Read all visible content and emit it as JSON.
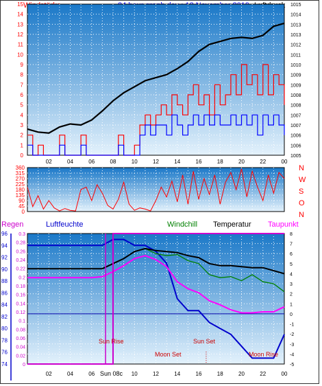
{
  "header": {
    "left_label": "Windstärke",
    "title": "24 hour graph day : 18 November 2019",
    "right_label": "Luftdruck"
  },
  "colors": {
    "wind": "#ff0000",
    "gust": "#0000ff",
    "pressure": "#000000",
    "rain": "#cc00cc",
    "humidity": "#0000cc",
    "windchill": "#008000",
    "temperature": "#000000",
    "dewpoint": "#ff00ff",
    "event": "#cc0000",
    "plot_top": "#1a78c8",
    "plot_bottom": "#e4f2fc"
  },
  "bottom_header": {
    "rain_label": "Regen",
    "humidity_label": "Luftfeuchte",
    "windchill_label": "Windchill",
    "temperature_label": "Temperatur",
    "dewpoint_label": "Taupunkt"
  },
  "events": {
    "sunrise": "Sun Rise",
    "sunset": "Sun Set",
    "moonset": "Moon Set",
    "moonrise": "Moon Rise",
    "sunrise_bottom": "Sun 08c"
  },
  "chart_data": [
    {
      "type": "line",
      "name": "wind-pressure",
      "x_ticks": [
        "02",
        "04",
        "06",
        "08",
        "10",
        "12",
        "14",
        "16",
        "18",
        "20",
        "22",
        "00"
      ],
      "x_range": [
        0,
        24
      ],
      "y_left_ticks": [
        "0",
        "1",
        "2",
        "3",
        "4",
        "5",
        "6",
        "7",
        "8",
        "9",
        "10",
        "11",
        "12",
        "13",
        "14",
        "15"
      ],
      "y_left_range": [
        0,
        15
      ],
      "y_right_ticks": [
        "1005",
        "1006",
        "1006",
        "1007",
        "1007",
        "1008",
        "1008",
        "1009",
        "1009",
        "1010",
        "1011",
        "1012",
        "1013",
        "1013",
        "1014",
        "1015"
      ],
      "pressure_x": [
        0,
        1,
        2,
        3,
        4,
        5,
        6,
        7,
        8,
        9,
        10,
        11,
        12,
        13,
        14,
        15,
        16,
        17,
        18,
        19,
        20,
        21,
        22,
        23,
        24
      ],
      "pressure_y": [
        2.6,
        2.3,
        2.2,
        2.8,
        3.1,
        3.0,
        3.5,
        4.4,
        5.4,
        6.2,
        6.8,
        7.4,
        7.7,
        8.0,
        8.6,
        9.3,
        10.3,
        11.0,
        11.3,
        11.6,
        11.7,
        11.6,
        11.9,
        12.8,
        13.1
      ],
      "wind_level_x": [
        0,
        0.5,
        1,
        1.5,
        2,
        2.5,
        3,
        3.5,
        4,
        4.5,
        5,
        5.5,
        6,
        6.5,
        7,
        7.5,
        8,
        8.5,
        9,
        9.5,
        10,
        10.5,
        11,
        11.5,
        12,
        12.5,
        13,
        13.5,
        14,
        14.5,
        15,
        15.5,
        16,
        16.5,
        17,
        17.5,
        18,
        18.5,
        19,
        19.5,
        20,
        20.5,
        21,
        21.5,
        22,
        22.5,
        23,
        23.5,
        24
      ],
      "wind_level_y": [
        2,
        0,
        1,
        0,
        0,
        0,
        2,
        0,
        0,
        0,
        2,
        0,
        0,
        0,
        0,
        0,
        0,
        2,
        0,
        0,
        1,
        3,
        4,
        3,
        4,
        5,
        4,
        6,
        5,
        4,
        6,
        7,
        5,
        6,
        4,
        7,
        5,
        6,
        8,
        6,
        9,
        7,
        8,
        6,
        9,
        6,
        8,
        7,
        5
      ],
      "gust_level_y": [
        1,
        0,
        0,
        0,
        0,
        0,
        1,
        0,
        0,
        0,
        1,
        0,
        0,
        0,
        0,
        0,
        0,
        1,
        0,
        0,
        0,
        2,
        3,
        2,
        3,
        3,
        2,
        4,
        3,
        2,
        3,
        4,
        3,
        4,
        3,
        4,
        3,
        3,
        4,
        3,
        4,
        3,
        4,
        2,
        4,
        3,
        4,
        3,
        2
      ]
    },
    {
      "type": "line",
      "name": "wind-direction",
      "x_range": [
        0,
        24
      ],
      "y_left_ticks": [
        "0",
        "45",
        "90",
        "135",
        "180",
        "225",
        "270",
        "315",
        "360"
      ],
      "y_left_range": [
        0,
        360
      ],
      "y_right_labels": [
        "N",
        "W",
        "S",
        "O",
        "N"
      ],
      "direction_x": [
        0,
        0.5,
        1,
        1.5,
        2,
        2.5,
        3,
        3.5,
        4,
        4.5,
        5,
        5.5,
        6,
        6.5,
        7,
        7.5,
        8,
        8.5,
        9,
        9.5,
        10,
        10.5,
        11,
        11.5,
        12,
        12.5,
        13,
        13.5,
        14,
        14.5,
        15,
        15.5,
        16,
        16.5,
        17,
        17.5,
        18,
        18.5,
        19,
        19.5,
        20,
        20.5,
        21,
        21.5,
        22,
        22.5,
        23,
        23.5,
        24
      ],
      "direction_y": [
        200,
        40,
        130,
        20,
        90,
        30,
        5,
        25,
        10,
        5,
        180,
        200,
        90,
        220,
        150,
        50,
        20,
        100,
        240,
        60,
        10,
        30,
        20,
        5,
        90,
        200,
        120,
        250,
        80,
        300,
        60,
        330,
        100,
        270,
        140,
        300,
        60,
        240,
        320,
        180,
        350,
        120,
        330,
        200,
        90,
        300,
        150,
        320,
        270
      ]
    },
    {
      "type": "line",
      "name": "temperature-humidity",
      "x_range": [
        0,
        24
      ],
      "y_left_humidity_ticks": [
        "74",
        "76",
        "78",
        "80",
        "82",
        "84",
        "86",
        "88",
        "90",
        "92",
        "94",
        "96"
      ],
      "y_left_humidity_range": [
        74,
        96
      ],
      "y_left_rain_ticks": [
        "0",
        "0.02",
        "0.04",
        "0.06",
        "0.08",
        "0.1",
        "0.12",
        "0.14",
        "0.16",
        "0.18",
        "0.2",
        "0.22",
        "0.24",
        "0.26",
        "0.28",
        "0.3"
      ],
      "y_left_rain_range": [
        0,
        0.3
      ],
      "y_right_ticks": [
        "-5",
        "-4",
        "-3",
        "-2",
        "-1",
        "0",
        "1",
        "2",
        "3",
        "4",
        "5",
        "6",
        "7",
        "8"
      ],
      "y_right_range": [
        -5,
        8
      ],
      "temp_x": [
        0,
        2,
        4,
        6,
        7,
        8,
        9,
        10,
        11,
        12,
        13,
        14,
        15,
        16,
        17,
        18,
        19,
        20,
        21,
        22,
        23,
        24
      ],
      "temperature": [
        4.5,
        4.5,
        4.5,
        4.5,
        4.5,
        5.0,
        5.5,
        6.2,
        6.5,
        6.3,
        6.2,
        6.1,
        5.8,
        5.6,
        5.0,
        4.8,
        4.8,
        4.7,
        4.6,
        4.6,
        4.3,
        4.0
      ],
      "windchill": [
        4.5,
        4.5,
        4.5,
        4.5,
        4.5,
        5.0,
        5.5,
        6.2,
        6.5,
        6.0,
        5.8,
        5.9,
        5.3,
        5.0,
        3.9,
        3.6,
        3.7,
        3.3,
        3.9,
        3.2,
        3.0,
        2.2
      ],
      "dewpoint": [
        3.6,
        3.6,
        3.6,
        3.6,
        3.7,
        4.2,
        4.8,
        5.5,
        5.8,
        5.4,
        4.7,
        3.2,
        2.5,
        2.1,
        1.3,
        0.9,
        0.4,
        0.1,
        0.1,
        0.2,
        0.2,
        0.7
      ],
      "humidity": [
        94,
        94,
        94,
        94,
        94,
        95,
        95,
        94,
        94,
        93,
        91,
        85,
        83,
        83,
        81,
        80,
        79,
        77,
        75,
        75,
        75,
        79
      ],
      "rain": [
        0,
        0,
        0,
        0,
        0,
        0.3,
        0.3,
        0.3,
        0.3,
        0.3,
        0.3,
        0.3,
        0.3,
        0.3,
        0.3,
        0.3,
        0.3,
        0.3,
        0.3,
        0.3,
        0.3,
        0.3
      ]
    }
  ]
}
